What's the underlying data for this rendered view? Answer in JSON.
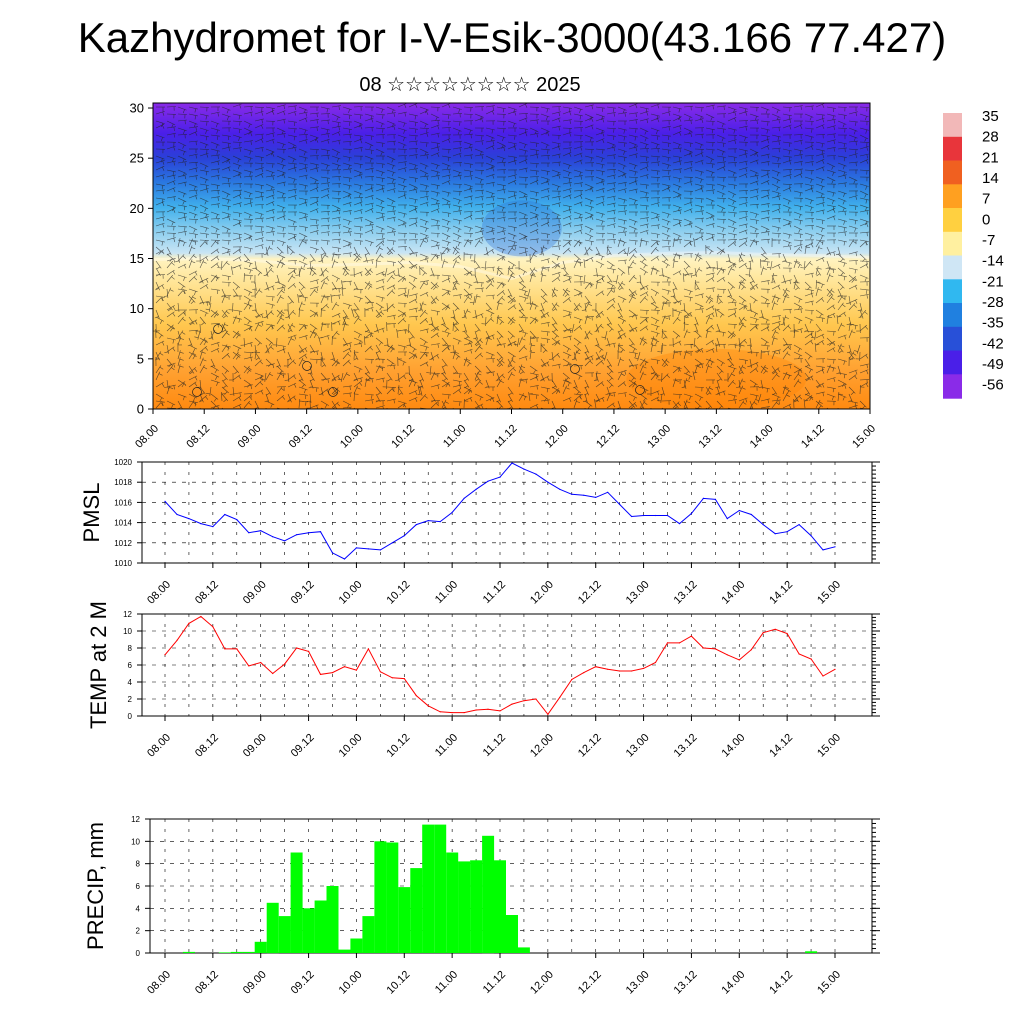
{
  "title": "Kazhydromet for I-V-Esik-3000(43.166 77.427)",
  "subtitle": "08 ☆☆☆☆☆☆☆☆ 2025",
  "colorbar": {
    "labels": [
      "35",
      "28",
      "21",
      "14",
      "7",
      "0",
      "-7",
      "-14",
      "-21",
      "-28",
      "-35",
      "-42",
      "-49",
      "-56"
    ],
    "colors": [
      "#f2b8b8",
      "#e8353b",
      "#f06020",
      "#ffa020",
      "#ffd040",
      "#fff0a0",
      "#cfe6f5",
      "#30b8f0",
      "#2080e0",
      "#2850d8",
      "#4a1fe8",
      "#8a2be8"
    ]
  },
  "chart_data": [
    {
      "type": "heatmap",
      "name": "cross-section",
      "x_ticks": [
        "08.00",
        "08.12",
        "09.00",
        "09.12",
        "10.00",
        "10.12",
        "11.00",
        "11.12",
        "12.00",
        "12.12",
        "13.00",
        "13.12",
        "14.00",
        "14.12",
        "15.00"
      ],
      "y_ticks": [
        "0",
        "5",
        "10",
        "15",
        "20",
        "25",
        "30"
      ],
      "ylim": [
        0,
        30.5
      ],
      "color_scale": [
        -56,
        35
      ],
      "freezing_level_x": [
        0,
        1,
        2,
        3,
        4,
        5,
        6,
        7,
        8,
        9,
        10,
        11,
        12,
        13,
        14
      ],
      "freezing_level_y": [
        14.9,
        15.0,
        14.8,
        14.3,
        14.4,
        14.6,
        14.2,
        13.0,
        14.6,
        15.3,
        15.5,
        15.6,
        15.4,
        15.3,
        15.1
      ]
    },
    {
      "type": "line",
      "name": "PMSL",
      "ylabel": "PMSL",
      "x_ticks": [
        "08.00",
        "08.12",
        "09.00",
        "09.12",
        "10.00",
        "10.12",
        "11.00",
        "11.12",
        "12.00",
        "12.12",
        "13.00",
        "13.12",
        "14.00",
        "14.12",
        "15.00"
      ],
      "y_ticks": [
        "1010",
        "1012",
        "1014",
        "1016",
        "1018",
        "1020"
      ],
      "ylim": [
        1010,
        1020
      ],
      "color": "#0000ff",
      "values": [
        1016.1,
        1014.8,
        1014.4,
        1013.9,
        1013.6,
        1014.8,
        1014.3,
        1013.0,
        1013.2,
        1012.6,
        1012.2,
        1012.8,
        1013.0,
        1013.1,
        1011.0,
        1010.4,
        1011.5,
        1011.4,
        1011.3,
        1012.0,
        1012.7,
        1013.8,
        1014.2,
        1014.1,
        1015.0,
        1016.4,
        1017.3,
        1018.1,
        1018.5,
        1019.9,
        1019.3,
        1018.8,
        1018.0,
        1017.3,
        1016.8,
        1016.7,
        1016.5,
        1017.0,
        1015.8,
        1014.6,
        1014.7,
        1014.7,
        1014.7,
        1013.9,
        1014.9,
        1016.4,
        1016.3,
        1014.4,
        1015.2,
        1014.8,
        1013.8,
        1012.9,
        1013.1,
        1013.8,
        1012.7,
        1011.3,
        1011.6
      ]
    },
    {
      "type": "line",
      "name": "TEMP at 2 M",
      "ylabel": "TEMP at 2 M",
      "x_ticks": [
        "08.00",
        "08.12",
        "09.00",
        "09.12",
        "10.00",
        "10.12",
        "11.00",
        "11.12",
        "12.00",
        "12.12",
        "13.00",
        "13.12",
        "14.00",
        "14.12",
        "15.00"
      ],
      "y_ticks": [
        "0",
        "2",
        "4",
        "6",
        "8",
        "10",
        "12"
      ],
      "ylim": [
        0,
        12
      ],
      "color": "#ff0000",
      "values": [
        7.2,
        8.9,
        10.9,
        11.7,
        10.5,
        7.9,
        7.9,
        5.9,
        6.3,
        5.0,
        6.1,
        8.0,
        7.6,
        4.9,
        5.1,
        5.8,
        5.4,
        7.9,
        5.2,
        4.5,
        4.4,
        2.4,
        1.2,
        0.5,
        0.4,
        0.4,
        0.7,
        0.8,
        0.6,
        1.4,
        1.8,
        2.0,
        0.2,
        2.2,
        4.3,
        5.1,
        5.8,
        5.5,
        5.3,
        5.3,
        5.6,
        6.3,
        8.6,
        8.6,
        9.4,
        8.0,
        7.9,
        7.2,
        6.6,
        7.8,
        9.8,
        10.2,
        9.7,
        7.3,
        6.7,
        4.7,
        5.5
      ]
    },
    {
      "type": "bar",
      "name": "PRECIP",
      "ylabel": "PRECIP, mm",
      "x_ticks": [
        "08.00",
        "08.12",
        "09.00",
        "09.12",
        "10.00",
        "10.12",
        "11.00",
        "11.12",
        "12.00",
        "12.12",
        "13.00",
        "13.12",
        "14.00",
        "14.12",
        "15.00"
      ],
      "y_ticks": [
        "0",
        "2",
        "4",
        "6",
        "8",
        "10",
        "12"
      ],
      "ylim": [
        0,
        12
      ],
      "color": "#00ff00",
      "values": [
        0,
        0,
        0.1,
        0,
        0,
        0.05,
        0.1,
        0.1,
        1.0,
        4.5,
        3.3,
        9.0,
        4.0,
        4.7,
        6.0,
        0.3,
        1.3,
        3.3,
        10.0,
        9.9,
        5.9,
        7.6,
        11.5,
        11.5,
        9.0,
        8.2,
        8.3,
        10.5,
        8.3,
        3.4,
        0.5,
        0,
        0,
        0,
        0,
        0,
        0,
        0,
        0,
        0,
        0,
        0,
        0,
        0,
        0,
        0,
        0,
        0,
        0,
        0,
        0,
        0,
        0,
        0,
        0.15,
        0,
        0
      ]
    }
  ]
}
